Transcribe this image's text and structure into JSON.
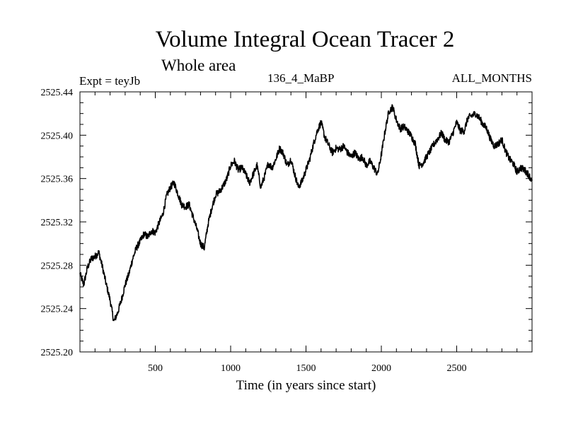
{
  "chart_data": {
    "type": "line",
    "title": "Volume Integral Ocean Tracer 2",
    "subtitle": "Whole area",
    "experiment_label": "Expt = teyJb",
    "center_label": "136_4_MaBP",
    "right_label": "ALL_MONTHS",
    "xlabel": "Time (in years since start)",
    "ylabel": "",
    "xlim": [
      0,
      3000
    ],
    "ylim": [
      2525.2,
      2525.44
    ],
    "x_ticks": [
      500,
      1000,
      1500,
      2000,
      2500
    ],
    "x_tick_labels": [
      "500",
      "1000",
      "1500",
      "2000",
      "2500"
    ],
    "y_ticks": [
      2525.2,
      2525.24,
      2525.28,
      2525.32,
      2525.36,
      2525.4,
      2525.44
    ],
    "y_tick_labels": [
      "2525.20",
      "2525.24",
      "2525.28",
      "2525.32",
      "2525.36",
      "2525.40",
      "2525.44"
    ],
    "grid": false,
    "series": [
      {
        "name": "Volume Integral Ocean Tracer 2",
        "x": [
          0,
          25,
          50,
          75,
          100,
          125,
          150,
          175,
          200,
          225,
          250,
          275,
          300,
          325,
          350,
          375,
          400,
          425,
          450,
          475,
          500,
          525,
          550,
          575,
          600,
          625,
          650,
          675,
          700,
          725,
          750,
          775,
          800,
          825,
          850,
          875,
          900,
          925,
          950,
          975,
          1000,
          1025,
          1050,
          1075,
          1100,
          1125,
          1150,
          1175,
          1200,
          1225,
          1250,
          1275,
          1300,
          1325,
          1350,
          1375,
          1400,
          1425,
          1450,
          1475,
          1500,
          1525,
          1550,
          1575,
          1600,
          1625,
          1650,
          1675,
          1700,
          1725,
          1750,
          1775,
          1800,
          1825,
          1850,
          1875,
          1900,
          1925,
          1950,
          1975,
          2000,
          2025,
          2050,
          2075,
          2100,
          2125,
          2150,
          2175,
          2200,
          2225,
          2250,
          2275,
          2300,
          2325,
          2350,
          2375,
          2400,
          2425,
          2450,
          2475,
          2500,
          2525,
          2550,
          2575,
          2600,
          2625,
          2650,
          2675,
          2700,
          2725,
          2750,
          2775,
          2800,
          2825,
          2850,
          2875,
          2900,
          2925,
          2950,
          2975,
          3000
        ],
        "y": [
          2525.272,
          2525.262,
          2525.278,
          2525.286,
          2525.288,
          2525.292,
          2525.278,
          2525.262,
          2525.248,
          2525.228,
          2525.236,
          2525.248,
          2525.262,
          2525.272,
          2525.286,
          2525.296,
          2525.302,
          2525.309,
          2525.306,
          2525.312,
          2525.31,
          2525.319,
          2525.327,
          2525.344,
          2525.352,
          2525.356,
          2525.346,
          2525.336,
          2525.334,
          2525.336,
          2525.325,
          2525.314,
          2525.3,
          2525.296,
          2525.318,
          2525.333,
          2525.345,
          2525.348,
          2525.353,
          2525.36,
          2525.372,
          2525.376,
          2525.368,
          2525.37,
          2525.364,
          2525.356,
          2525.364,
          2525.372,
          2525.352,
          2525.362,
          2525.374,
          2525.37,
          2525.378,
          2525.388,
          2525.383,
          2525.372,
          2525.378,
          2525.364,
          2525.352,
          2525.358,
          2525.368,
          2525.378,
          2525.392,
          2525.404,
          2525.412,
          2525.398,
          2525.391,
          2525.384,
          2525.388,
          2525.387,
          2525.39,
          2525.384,
          2525.38,
          2525.384,
          2525.378,
          2525.38,
          2525.372,
          2525.376,
          2525.37,
          2525.364,
          2525.382,
          2525.404,
          2525.422,
          2525.426,
          2525.414,
          2525.406,
          2525.408,
          2525.404,
          2525.399,
          2525.392,
          2525.372,
          2525.374,
          2525.38,
          2525.386,
          2525.392,
          2525.397,
          2525.402,
          2525.395,
          2525.394,
          2525.402,
          2525.412,
          2525.404,
          2525.404,
          2525.416,
          2525.418,
          2525.42,
          2525.416,
          2525.41,
          2525.406,
          2525.396,
          2525.39,
          2525.392,
          2525.396,
          2525.385,
          2525.378,
          2525.374,
          2525.366,
          2525.37,
          2525.368,
          2525.364,
          2525.358
        ]
      }
    ]
  },
  "style": {
    "line_color": "#000000",
    "axis_color": "#000000",
    "background": "#ffffff"
  }
}
